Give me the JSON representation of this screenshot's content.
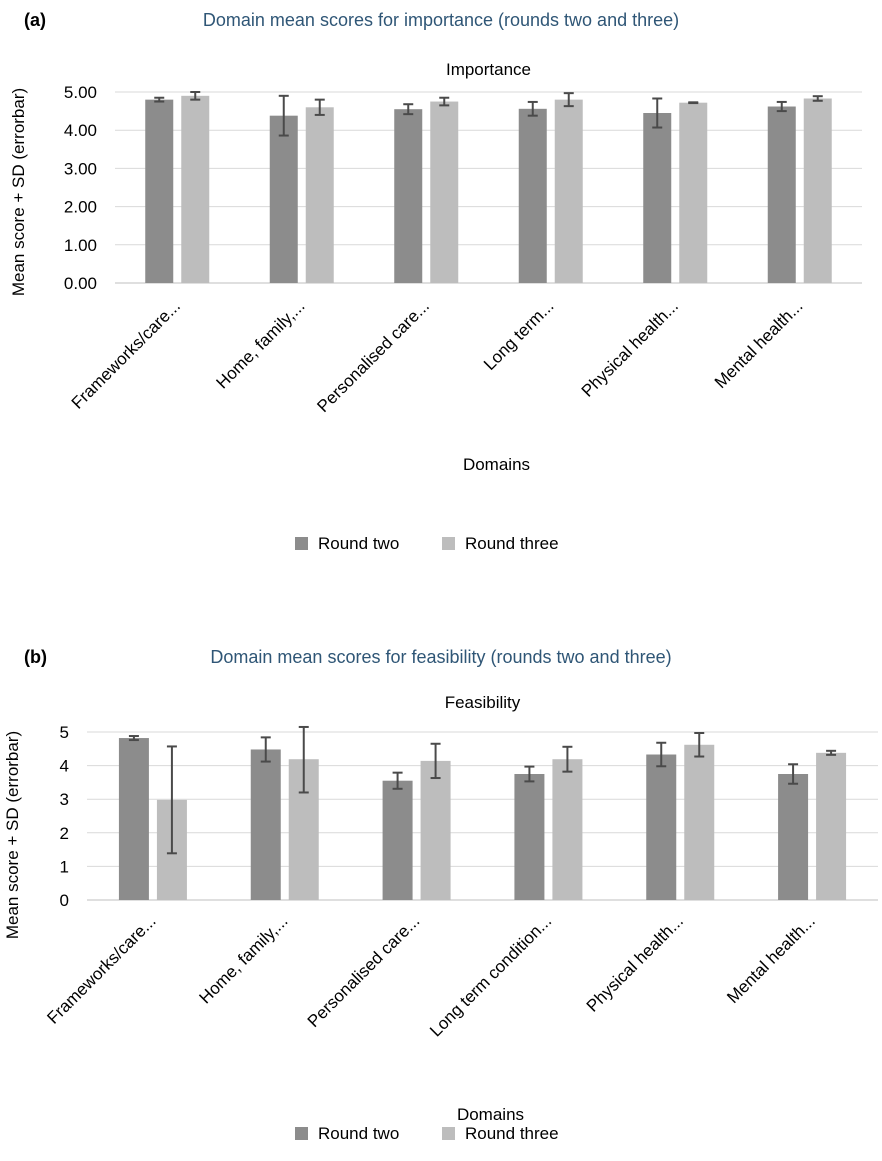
{
  "charts": [
    {
      "panel_label": "(a)",
      "figure_title": "Domain mean scores for importance (rounds two and three)",
      "colors": {
        "round_two": "#8c8c8c",
        "round_three": "#bdbdbd",
        "grid": "#d9d9d9",
        "error": "#4a4a4a"
      }
    },
    {
      "panel_label": "(b)",
      "figure_title": "Domain mean scores for feasibility (rounds two and three)",
      "colors": {
        "round_two": "#8c8c8c",
        "round_three": "#bdbdbd",
        "grid": "#d9d9d9",
        "error": "#4a4a4a"
      }
    }
  ],
  "chart_data": [
    {
      "type": "bar",
      "title": "Importance",
      "xlabel": "Domains",
      "ylabel": "Mean score + SD (errorbar)",
      "categories": [
        "Frameworks/care...",
        "Home, family,...",
        "Personalised care...",
        "Long term...",
        "Physical health...",
        "Mental health..."
      ],
      "series": [
        {
          "name": "Round two",
          "values": [
            4.8,
            4.38,
            4.55,
            4.56,
            4.45,
            4.62
          ],
          "error": [
            0.05,
            0.52,
            0.13,
            0.18,
            0.38,
            0.12
          ]
        },
        {
          "name": "Round three",
          "values": [
            4.9,
            4.6,
            4.75,
            4.8,
            4.72,
            4.83
          ],
          "error": [
            0.1,
            0.2,
            0.1,
            0.17,
            0.01,
            0.06
          ]
        }
      ],
      "ylim": [
        0,
        5
      ],
      "yticks": [
        "0.00",
        "1.00",
        "2.00",
        "3.00",
        "4.00",
        "5.00"
      ],
      "grid": true,
      "legend": "bottom"
    },
    {
      "type": "bar",
      "title": "Feasibility",
      "xlabel": "Domains",
      "ylabel": "Mean score + SD (errorbar)",
      "categories": [
        "Frameworks/care...",
        "Home, family,...",
        "Personalised care...",
        "Long term condition...",
        "Physical health...",
        "Mental health..."
      ],
      "series": [
        {
          "name": "Round two",
          "values": [
            4.82,
            4.48,
            3.55,
            3.75,
            4.33,
            3.75
          ],
          "error": [
            0.06,
            0.36,
            0.24,
            0.22,
            0.35,
            0.29
          ]
        },
        {
          "name": "Round three",
          "values": [
            2.98,
            4.19,
            4.14,
            4.19,
            4.62,
            4.38
          ],
          "error": [
            1.59,
            0.99,
            0.51,
            0.37,
            0.35,
            0.06
          ]
        }
      ],
      "ylim": [
        0,
        5
      ],
      "yticks": [
        "0",
        "1",
        "2",
        "3",
        "4",
        "5"
      ],
      "grid": true,
      "legend": "bottom"
    }
  ]
}
